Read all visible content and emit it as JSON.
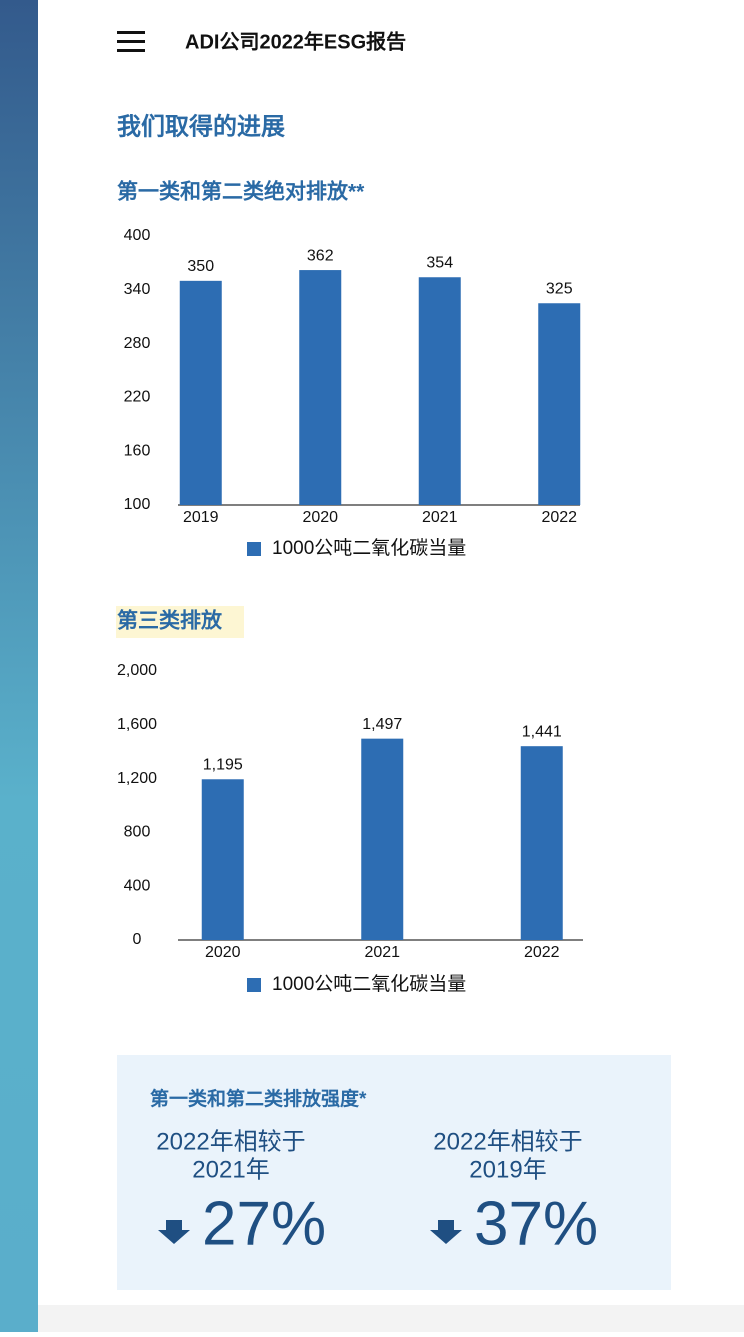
{
  "header": {
    "title": "ADI公司2022年ESG报告"
  },
  "section_title": "我们取得的进展",
  "chart_data": [
    {
      "type": "bar",
      "title": "第一类和第二类绝对排放**",
      "categories": [
        "2019",
        "2020",
        "2021",
        "2022"
      ],
      "series": [
        {
          "name": "1000公吨二氧化碳当量",
          "color": "#2d6db3",
          "values": [
            350,
            362,
            354,
            325
          ]
        }
      ],
      "ylim": [
        100,
        400
      ],
      "yticks": [
        100,
        160,
        220,
        280,
        340,
        400
      ]
    },
    {
      "type": "bar",
      "title": "第三类排放",
      "categories": [
        "2020",
        "2021",
        "2022"
      ],
      "series": [
        {
          "name": "1000公吨二氧化碳当量",
          "color": "#2d6db3",
          "values": [
            1195,
            1497,
            1441
          ],
          "value_labels": [
            "1,195",
            "1,497",
            "1,441"
          ]
        }
      ],
      "ylim": [
        0,
        2000
      ],
      "yticks": [
        0,
        400,
        800,
        {
          "value": 1200,
          "label": "1,200"
        },
        {
          "value": 1600,
          "label": "1,600"
        },
        {
          "value": 2000,
          "label": "2,000"
        }
      ]
    }
  ],
  "intensity": {
    "title": "第一类和第二类排放强度*",
    "items": [
      {
        "line1": "2022年相较于",
        "line2": "2021年",
        "change": "27%"
      },
      {
        "line1": "2022年相较于",
        "line2": "2019年",
        "change": "37%"
      }
    ]
  }
}
